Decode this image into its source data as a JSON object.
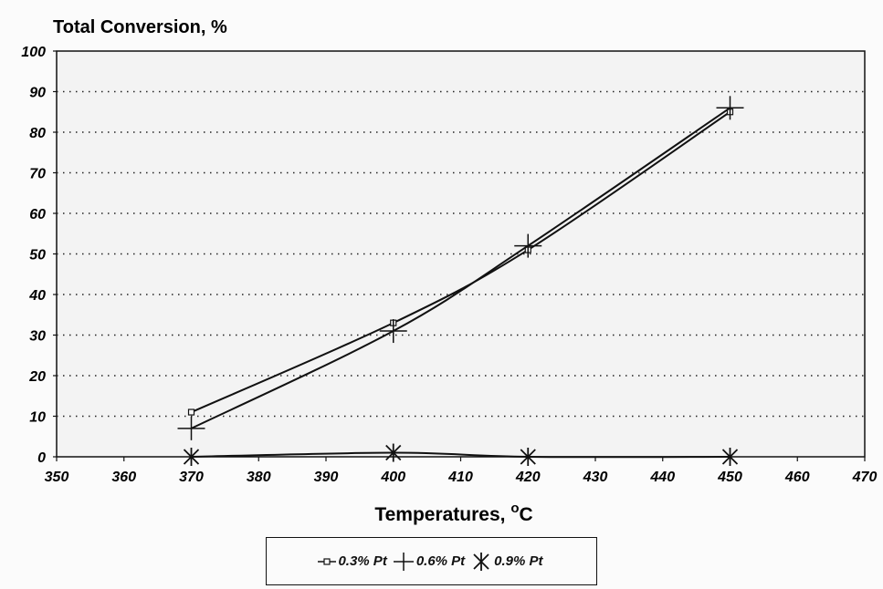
{
  "chart_data": {
    "type": "line",
    "title": "Total Conversion, %",
    "xlabel": "Temperatures, °C",
    "ylabel": "",
    "xlim": [
      350,
      470
    ],
    "ylim": [
      0,
      100
    ],
    "xticks": [
      350,
      360,
      370,
      380,
      390,
      400,
      410,
      420,
      430,
      440,
      450,
      460,
      470
    ],
    "yticks": [
      0,
      10,
      20,
      30,
      40,
      50,
      60,
      70,
      80,
      90,
      100
    ],
    "grid": "horizontal dotted",
    "legend_position": "bottom",
    "series": [
      {
        "name": "0.3% Pt",
        "marker": "square",
        "x": [
          370,
          400,
          420,
          450
        ],
        "y": [
          11,
          33,
          51,
          85
        ]
      },
      {
        "name": "0.6% Pt",
        "marker": "plus",
        "x": [
          370,
          400,
          420,
          450
        ],
        "y": [
          7,
          31,
          52,
          86
        ]
      },
      {
        "name": "0.9% Pt",
        "marker": "asterisk",
        "x": [
          370,
          400,
          420,
          450
        ],
        "y": [
          0,
          1,
          0,
          0
        ]
      }
    ]
  }
}
